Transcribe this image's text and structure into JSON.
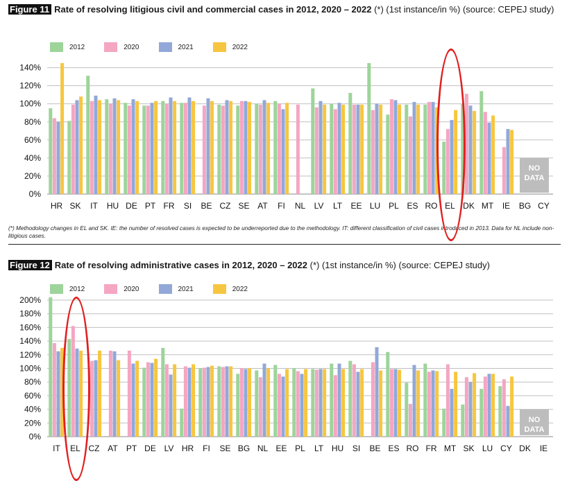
{
  "colors": {
    "2012": "#9dd49a",
    "2020": "#f4a6c3",
    "2021": "#92a8d8",
    "2022": "#f7c640",
    "grid": "#bfbfbf",
    "highlight": "#e02020",
    "nodata": "#bdbdbd"
  },
  "figure11": {
    "tag": "Figure 11",
    "title_bold": "Rate of resolving litigious civil and commercial cases in 2012, 2020 – 2022",
    "title_note": " (*) (1st instance/in %) (source: CEPEJ study)",
    "note": "(*) Methodology changes in EL and SK. IE: the number of resolved cases is expected to be underreported due to the methodology. IT: different classification of civil cases introduced in 2013. Data for NL include non-litigious cases.",
    "nodata_label": "NO DATA"
  },
  "figure12": {
    "tag": "Figure 12",
    "title_bold": "Rate of resolving administrative cases in 2012, 2020 – 2022",
    "title_note": " (*) (1st instance/in %) (source: CEPEJ study)",
    "nodata_label": "NO DATA"
  },
  "chart_data": [
    {
      "type": "bar",
      "title": "Rate of resolving litigious civil and commercial cases in 2012, 2020 – 2022",
      "ylim": [
        0,
        150
      ],
      "yticks": [
        "0%",
        "20%",
        "40%",
        "60%",
        "80%",
        "100%",
        "120%",
        "140%"
      ],
      "grid": true,
      "legend_position": "top",
      "categories": [
        "HR",
        "SK",
        "IT",
        "HU",
        "DE",
        "PT",
        "FR",
        "SI",
        "BE",
        "CZ",
        "SE",
        "AT",
        "FI",
        "NL",
        "LV",
        "LT",
        "EE",
        "LU",
        "PL",
        "ES",
        "RO",
        "EL",
        "DK",
        "MT",
        "IE",
        "BG",
        "CY"
      ],
      "series": [
        {
          "name": "2012",
          "values": [
            95,
            81,
            131,
            105,
            101,
            98,
            103,
            101,
            null,
            99,
            98,
            100,
            103,
            null,
            117,
            100,
            112,
            145,
            88,
            99,
            99,
            58,
            100,
            114,
            null,
            null,
            null
          ]
        },
        {
          "name": "2020",
          "values": [
            84,
            99,
            103,
            100,
            98,
            98,
            100,
            101,
            98,
            98,
            103,
            99,
            100,
            99,
            96,
            94,
            99,
            93,
            105,
            86,
            102,
            72,
            111,
            91,
            52,
            null,
            null
          ]
        },
        {
          "name": "2021",
          "values": [
            80,
            104,
            109,
            106,
            105,
            101,
            107,
            107,
            106,
            104,
            103,
            104,
            94,
            null,
            103,
            101,
            99,
            100,
            104,
            102,
            102,
            82,
            98,
            79,
            72,
            null,
            null
          ]
        },
        {
          "name": "2022",
          "values": [
            145,
            108,
            104,
            104,
            103,
            103,
            103,
            103,
            103,
            103,
            102,
            101,
            101,
            null,
            99,
            99,
            99,
            99,
            99,
            99,
            96,
            93,
            92,
            87,
            71,
            null,
            null
          ]
        }
      ],
      "no_data": [
        "BG",
        "CY"
      ],
      "highlighted": "EL"
    },
    {
      "type": "bar",
      "title": "Rate of resolving administrative cases in 2012, 2020 – 2022",
      "ylim": [
        0,
        200
      ],
      "yticks": [
        "0%",
        "20%",
        "40%",
        "60%",
        "80%",
        "100%",
        "120%",
        "140%",
        "160%",
        "180%",
        "200%"
      ],
      "grid": true,
      "legend_position": "top",
      "categories": [
        "IT",
        "EL",
        "CZ",
        "AT",
        "PT",
        "DE",
        "LV",
        "HR",
        "FI",
        "SE",
        "BG",
        "NL",
        "EE",
        "PL",
        "LT",
        "HU",
        "SI",
        "BE",
        "ES",
        "RO",
        "FR",
        "MT",
        "SK",
        "LU",
        "CY",
        "DK",
        "IE"
      ],
      "series": [
        {
          "name": "2012",
          "values": [
            205,
            143,
            null,
            null,
            null,
            101,
            130,
            41,
            100,
            103,
            92,
            97,
            105,
            100,
            99,
            107,
            111,
            null,
            124,
            79,
            107,
            41,
            47,
            70,
            74,
            null,
            null
          ]
        },
        {
          "name": "2020",
          "values": [
            137,
            162,
            111,
            126,
            126,
            109,
            106,
            103,
            101,
            102,
            100,
            87,
            92,
            96,
            98,
            90,
            106,
            109,
            99,
            48,
            95,
            106,
            87,
            88,
            84,
            null,
            null
          ]
        },
        {
          "name": "2021",
          "values": [
            125,
            129,
            112,
            125,
            107,
            108,
            91,
            101,
            102,
            103,
            99,
            107,
            88,
            92,
            99,
            107,
            95,
            131,
            99,
            105,
            97,
            70,
            80,
            92,
            45,
            null,
            null
          ]
        },
        {
          "name": "2022",
          "values": [
            130,
            126,
            126,
            112,
            111,
            114,
            106,
            106,
            104,
            103,
            100,
            100,
            99,
            99,
            99,
            99,
            99,
            97,
            98,
            97,
            96,
            95,
            93,
            92,
            88,
            null,
            null
          ]
        }
      ],
      "no_data": [
        "DK",
        "IE"
      ],
      "highlighted": "EL"
    }
  ]
}
